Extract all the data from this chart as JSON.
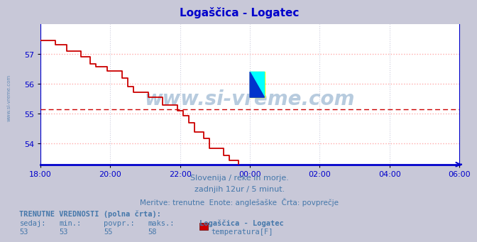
{
  "title": "Logaščica - Logatec",
  "title_color": "#0000cc",
  "fig_bg_color": "#c8c8d8",
  "plot_bg_color": "#ffffff",
  "line_color": "#cc0000",
  "avg_line_color": "#cc0000",
  "avg_line_y": 55.15,
  "axis_color": "#0000cc",
  "grid_h_color": "#ffaaaa",
  "grid_v_color": "#ccccdd",
  "watermark": "www.si-vreme.com",
  "watermark_color": "#4477aa",
  "watermark_alpha": 0.38,
  "xlabel_text1": "Slovenija / reke in morje.",
  "xlabel_text2": "zadnjih 12ur / 5 minut.",
  "xlabel_text3": "Meritve: trenutne  Enote: anglešaške  Črta: povprečje",
  "xlabel_color": "#4477aa",
  "bottom_bold": "TRENUTNE VREDNOSTI (polna črta):",
  "bottom_cols": [
    "sedaj:",
    "min.:",
    "povpr.:",
    "maks.:",
    "Logaščica - Logatec"
  ],
  "bottom_vals": [
    "53",
    "53",
    "55",
    "58",
    "temperatura[F]"
  ],
  "bottom_color": "#4477aa",
  "legend_rect_color": "#cc0000",
  "ylim_min": 53.3,
  "ylim_max": 58.0,
  "yticks": [
    54,
    55,
    56,
    57
  ],
  "xtick_labels": [
    "18:00",
    "20:00",
    "22:00",
    "00:00",
    "02:00",
    "04:00",
    "06:00"
  ],
  "n_points": 145,
  "sidebar_text": "www.si-vreme.com",
  "sidebar_color": "#4477aa"
}
